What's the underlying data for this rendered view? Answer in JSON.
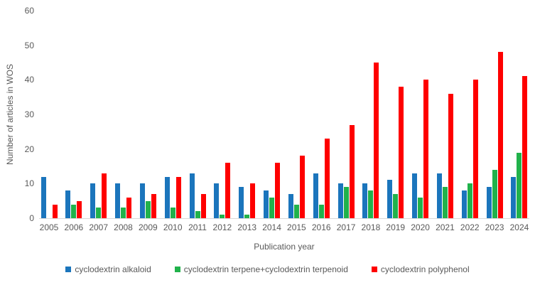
{
  "chart_data": {
    "type": "bar",
    "title": "",
    "xlabel": "Publication year",
    "ylabel": "Number of articles in WOS",
    "ylim": [
      0,
      60
    ],
    "yticks": [
      0,
      10,
      20,
      30,
      40,
      50,
      60
    ],
    "grid": false,
    "legend_position": "bottom",
    "plot_background": "#ffffff",
    "axis_line_color": "#d9d9d9",
    "text_color": "#595959",
    "categories": [
      "2005",
      "2006",
      "2007",
      "2008",
      "2009",
      "2010",
      "2011",
      "2012",
      "2013",
      "2014",
      "2015",
      "2016",
      "2017",
      "2018",
      "2019",
      "2020",
      "2021",
      "2022",
      "2023",
      "2024"
    ],
    "series": [
      {
        "name": "cyclodextrin alkaloid",
        "color": "#1b75bc",
        "values": [
          12,
          8,
          10,
          10,
          10,
          12,
          13,
          10,
          9,
          8,
          7,
          13,
          10,
          10,
          11,
          13,
          13,
          8,
          9,
          12
        ]
      },
      {
        "name": "cyclodextrin terpene+cyclodextrin terpenoid",
        "color": "#21b24b",
        "values": [
          0,
          4,
          3,
          3,
          5,
          3,
          2,
          1,
          1,
          6,
          4,
          4,
          9,
          8,
          7,
          6,
          9,
          10,
          14,
          19
        ]
      },
      {
        "name": "cyclodextrin polyphenol",
        "color": "#fe0000",
        "values": [
          4,
          5,
          13,
          6,
          7,
          12,
          7,
          16,
          10,
          16,
          18,
          23,
          27,
          45,
          38,
          40,
          36,
          40,
          48,
          41
        ]
      }
    ]
  }
}
